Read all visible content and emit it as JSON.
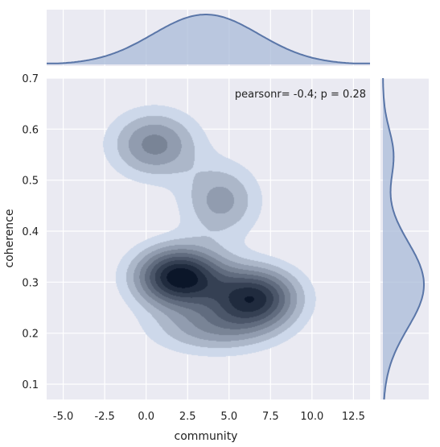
{
  "chart_data": {
    "type": "kde-jointplot",
    "xlabel": "community",
    "ylabel": "coherence",
    "xlim": [
      -6,
      13.5
    ],
    "ylim": [
      0.07,
      0.7
    ],
    "xticks": [
      -5.0,
      -2.5,
      0.0,
      2.5,
      5.0,
      7.5,
      10.0,
      12.5
    ],
    "xtick_labels": [
      "-5.0",
      "-2.5",
      "0.0",
      "2.5",
      "5.0",
      "7.5",
      "10.0",
      "12.5"
    ],
    "yticks": [
      0.1,
      0.2,
      0.3,
      0.4,
      0.5,
      0.6,
      0.7
    ],
    "ytick_labels": [
      "0.1",
      "0.2",
      "0.3",
      "0.4",
      "0.5",
      "0.6",
      "0.7"
    ],
    "annotation": "pearsonr= -0.4; p = 0.28",
    "grid": true,
    "kde_levels": 9,
    "density_components": [
      {
        "x": 0.5,
        "y": 0.57,
        "sx": 1.8,
        "sy": 0.045,
        "w": 0.45
      },
      {
        "x": 4.5,
        "y": 0.46,
        "sx": 1.6,
        "sy": 0.05,
        "w": 0.35
      },
      {
        "x": 2.0,
        "y": 0.31,
        "sx": 1.8,
        "sy": 0.04,
        "w": 1.0
      },
      {
        "x": 6.5,
        "y": 0.27,
        "sx": 1.8,
        "sy": 0.04,
        "w": 0.85
      },
      {
        "x": 4.0,
        "y": 0.21,
        "sx": 2.5,
        "sy": 0.035,
        "w": 0.35
      }
    ],
    "marginal_x": {
      "center": 3.6,
      "sd": 3.2
    },
    "marginal_y": {
      "center": 0.295,
      "sd": 0.085,
      "secondary_center": 0.55,
      "secondary_sd": 0.05,
      "secondary_weight": 0.25
    },
    "colors": {
      "background": "#eaeaf2",
      "grid": "#ffffff",
      "line": "#5a76a8",
      "fill": "#a9bbd8",
      "darkest": "#0b1629"
    }
  }
}
